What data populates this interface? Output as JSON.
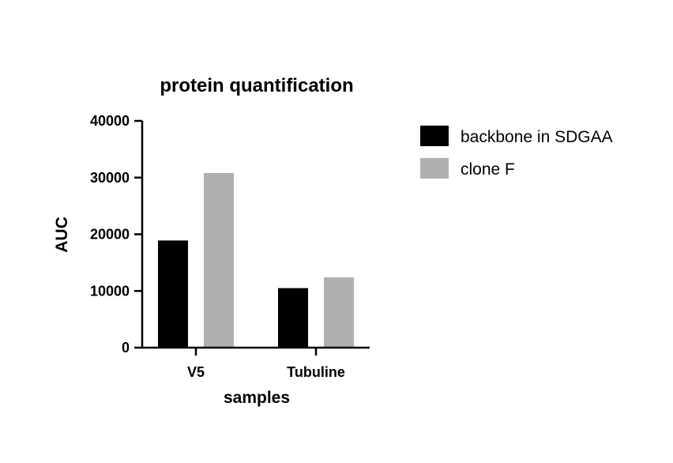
{
  "chart_data": {
    "type": "bar",
    "title": "protein quantification",
    "xlabel": "samples",
    "ylabel": "AUC",
    "categories": [
      "V5",
      "Tubuline"
    ],
    "series": [
      {
        "name": "backbone in SDGAA",
        "color": "#000000",
        "values": [
          18900,
          10500
        ]
      },
      {
        "name": "clone F",
        "color": "#b0b0b0",
        "values": [
          30800,
          12400
        ]
      }
    ],
    "ylim": [
      0,
      40000
    ],
    "yticks": [
      "0",
      "10000",
      "20000",
      "30000",
      "40000"
    ],
    "ytick_values": [
      0,
      10000,
      20000,
      30000,
      40000
    ],
    "grid": false,
    "legend_position": "right"
  }
}
